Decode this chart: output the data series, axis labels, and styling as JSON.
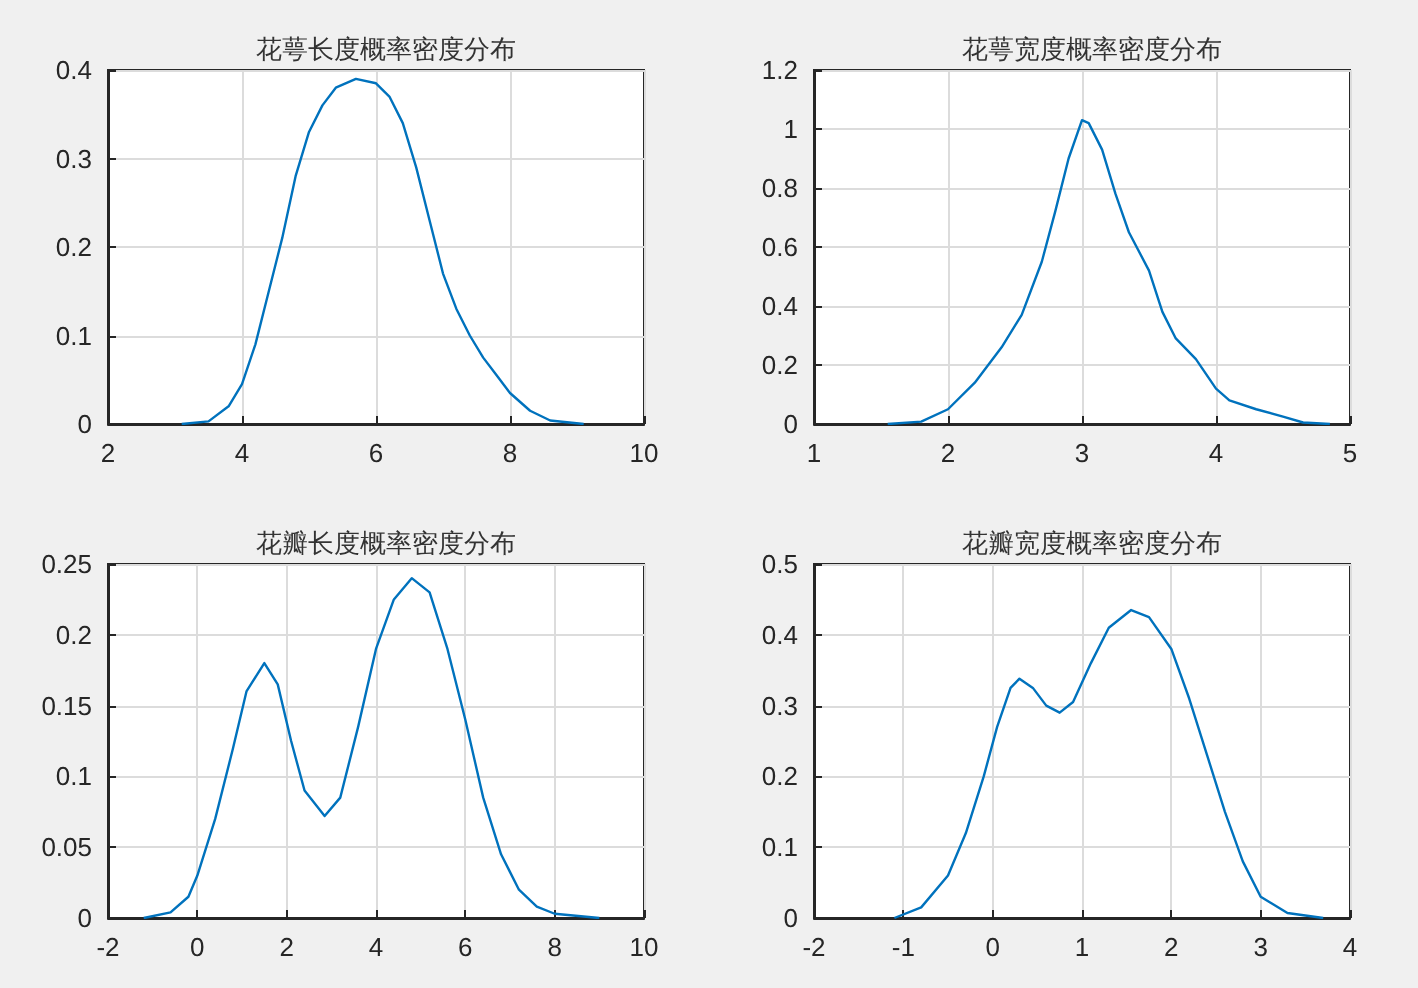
{
  "chart_data": [
    {
      "type": "line",
      "title": "花萼长度概率密度分布",
      "color": "#0072bd",
      "grid": true,
      "xlim": [
        2,
        10
      ],
      "xticks": [
        2,
        4,
        6,
        8,
        10
      ],
      "ylim": [
        0,
        0.4
      ],
      "yticks": [
        0,
        0.1,
        0.2,
        0.3,
        0.4
      ],
      "x": [
        3.1,
        3.5,
        3.8,
        4.0,
        4.2,
        4.4,
        4.6,
        4.8,
        5.0,
        5.2,
        5.4,
        5.7,
        6.0,
        6.2,
        6.4,
        6.6,
        6.8,
        7.0,
        7.2,
        7.4,
        7.6,
        7.8,
        8.0,
        8.3,
        8.6,
        9.1
      ],
      "values": [
        0,
        0.003,
        0.02,
        0.045,
        0.09,
        0.15,
        0.21,
        0.28,
        0.33,
        0.36,
        0.38,
        0.39,
        0.385,
        0.37,
        0.34,
        0.29,
        0.23,
        0.17,
        0.13,
        0.1,
        0.075,
        0.055,
        0.035,
        0.015,
        0.004,
        0
      ]
    },
    {
      "type": "line",
      "title": "花萼宽度概率密度分布",
      "color": "#0072bd",
      "grid": true,
      "xlim": [
        1,
        5
      ],
      "xticks": [
        1,
        2,
        3,
        4,
        5
      ],
      "ylim": [
        0,
        1.2
      ],
      "yticks": [
        0,
        0.2,
        0.4,
        0.6,
        0.8,
        1,
        1.2
      ],
      "x": [
        1.55,
        1.8,
        2.0,
        2.2,
        2.4,
        2.55,
        2.7,
        2.8,
        2.9,
        3.0,
        3.05,
        3.15,
        3.25,
        3.35,
        3.5,
        3.6,
        3.7,
        3.85,
        4.0,
        4.1,
        4.3,
        4.5,
        4.65,
        4.85
      ],
      "values": [
        0,
        0.008,
        0.05,
        0.14,
        0.26,
        0.37,
        0.55,
        0.72,
        0.9,
        1.03,
        1.02,
        0.93,
        0.78,
        0.65,
        0.52,
        0.38,
        0.29,
        0.22,
        0.12,
        0.08,
        0.05,
        0.025,
        0.005,
        0
      ]
    },
    {
      "type": "line",
      "title": "花瓣长度概率密度分布",
      "color": "#0072bd",
      "grid": true,
      "xlim": [
        -2,
        10
      ],
      "xticks": [
        -2,
        0,
        2,
        4,
        6,
        8,
        10
      ],
      "ylim": [
        0,
        0.25
      ],
      "yticks": [
        0,
        0.05,
        0.1,
        0.15,
        0.2,
        0.25
      ],
      "x": [
        -1.2,
        -0.6,
        -0.2,
        0,
        0.4,
        0.8,
        1.1,
        1.5,
        1.8,
        2.1,
        2.4,
        2.85,
        3.2,
        3.6,
        4.0,
        4.4,
        4.8,
        5.2,
        5.6,
        6.0,
        6.4,
        6.8,
        7.2,
        7.6,
        8.0,
        9.0
      ],
      "values": [
        0,
        0.004,
        0.015,
        0.03,
        0.07,
        0.12,
        0.16,
        0.18,
        0.165,
        0.125,
        0.09,
        0.072,
        0.085,
        0.135,
        0.19,
        0.225,
        0.24,
        0.23,
        0.19,
        0.14,
        0.085,
        0.045,
        0.02,
        0.008,
        0.003,
        0
      ]
    },
    {
      "type": "line",
      "title": "花瓣宽度概率密度分布",
      "color": "#0072bd",
      "grid": true,
      "xlim": [
        -2,
        4
      ],
      "xticks": [
        -2,
        -1,
        0,
        1,
        2,
        3,
        4
      ],
      "ylim": [
        0,
        0.5
      ],
      "yticks": [
        0,
        0.1,
        0.2,
        0.3,
        0.4,
        0.5
      ],
      "x": [
        -1.1,
        -0.8,
        -0.5,
        -0.3,
        -0.1,
        0.05,
        0.2,
        0.3,
        0.45,
        0.6,
        0.75,
        0.9,
        1.1,
        1.3,
        1.55,
        1.75,
        2.0,
        2.2,
        2.4,
        2.6,
        2.8,
        3.0,
        3.3,
        3.7
      ],
      "values": [
        0,
        0.015,
        0.06,
        0.12,
        0.2,
        0.27,
        0.325,
        0.338,
        0.325,
        0.3,
        0.29,
        0.305,
        0.36,
        0.41,
        0.435,
        0.425,
        0.38,
        0.31,
        0.23,
        0.15,
        0.08,
        0.03,
        0.007,
        0
      ]
    }
  ]
}
